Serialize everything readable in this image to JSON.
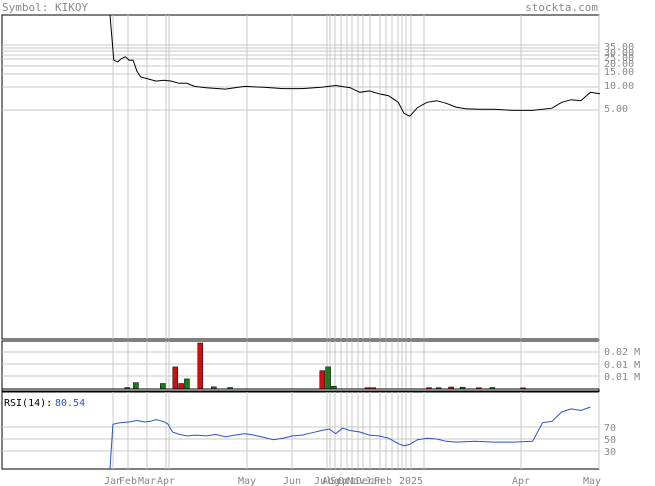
{
  "header": {
    "symbol_text": "Symbol: KIKOY",
    "site": "stockta.com"
  },
  "colors": {
    "price_line": "#000000",
    "grid": "#c8c8c8",
    "vol_up": "#1a7a1a",
    "vol_down": "#d01010",
    "rsi_line": "#2b52c9",
    "label_gray": "#888888"
  },
  "chart_data": [
    {
      "type": "line",
      "name": "price",
      "scale": "log",
      "ylim": [
        1.9,
        46
      ],
      "y_ticks": [
        "35.00",
        "30.00",
        "25.00",
        "20.00",
        "15.00",
        "10.00",
        "5.00"
      ],
      "x_tick_labels": [
        "Jan",
        "Feb",
        "Mar",
        "Apr",
        "May",
        "Jun",
        "Jul",
        "Aug",
        "Sep",
        "Oct",
        "Nov",
        "Dec",
        "Jan",
        "Feb",
        "2025",
        "Apr",
        "May"
      ],
      "points": [
        [
          0.0,
          50
        ],
        [
          0.04,
          29.5
        ],
        [
          0.08,
          29.0
        ],
        [
          0.12,
          30.0
        ],
        [
          0.16,
          30.5
        ],
        [
          0.2,
          29.5
        ],
        [
          0.24,
          29.5
        ],
        [
          0.28,
          26.5
        ],
        [
          0.32,
          25.0
        ],
        [
          0.4,
          24.5
        ],
        [
          0.48,
          24.0
        ],
        [
          0.56,
          24.2
        ],
        [
          0.64,
          24.0
        ],
        [
          0.72,
          23.5
        ],
        [
          0.8,
          23.5
        ],
        [
          0.88,
          22.8
        ],
        [
          1.0,
          22.5
        ],
        [
          1.2,
          22.2
        ],
        [
          1.4,
          22.8
        ],
        [
          1.6,
          22.6
        ],
        [
          1.8,
          22.3
        ],
        [
          2.0,
          22.3
        ],
        [
          2.2,
          22.6
        ],
        [
          2.35,
          23.0
        ],
        [
          2.5,
          22.5
        ],
        [
          2.6,
          21.5
        ],
        [
          2.7,
          21.8
        ],
        [
          2.8,
          21.2
        ],
        [
          2.9,
          20.8
        ],
        [
          3.0,
          19.5
        ],
        [
          3.06,
          17.5
        ],
        [
          3.12,
          17.0
        ],
        [
          3.2,
          18.5
        ],
        [
          3.3,
          19.5
        ],
        [
          3.4,
          19.8
        ],
        [
          3.5,
          19.3
        ],
        [
          3.6,
          18.6
        ],
        [
          3.7,
          18.3
        ],
        [
          3.85,
          18.2
        ],
        [
          4.0,
          18.2
        ],
        [
          4.2,
          18.0
        ],
        [
          4.4,
          18.0
        ],
        [
          4.6,
          18.4
        ],
        [
          4.7,
          19.5
        ],
        [
          4.8,
          20.0
        ],
        [
          4.9,
          19.8
        ],
        [
          5.0,
          21.5
        ],
        [
          5.1,
          21.2
        ]
      ]
    },
    {
      "type": "bar",
      "name": "volume",
      "y_ticks": [
        "0.02 M",
        "0.01 M",
        "0.01 M"
      ],
      "ylim": [
        0,
        0.025
      ],
      "bars": [
        {
          "x": 0.18,
          "v": 0.0008,
          "dir": "up"
        },
        {
          "x": 0.27,
          "v": 0.0035,
          "dir": "up"
        },
        {
          "x": 0.55,
          "v": 0.003,
          "dir": "up"
        },
        {
          "x": 0.68,
          "v": 0.012,
          "dir": "down"
        },
        {
          "x": 0.74,
          "v": 0.003,
          "dir": "down"
        },
        {
          "x": 0.8,
          "v": 0.0055,
          "dir": "up"
        },
        {
          "x": 0.94,
          "v": 0.025,
          "dir": "down"
        },
        {
          "x": 1.08,
          "v": 0.0012,
          "dir": "up"
        },
        {
          "x": 1.25,
          "v": 0.0008,
          "dir": "up"
        },
        {
          "x": 2.21,
          "v": 0.01,
          "dir": "down"
        },
        {
          "x": 2.27,
          "v": 0.012,
          "dir": "up"
        },
        {
          "x": 2.33,
          "v": 0.0015,
          "dir": "up"
        },
        {
          "x": 2.68,
          "v": 0.0007,
          "dir": "down"
        },
        {
          "x": 2.74,
          "v": 0.0007,
          "dir": "down"
        },
        {
          "x": 3.32,
          "v": 0.0007,
          "dir": "down"
        },
        {
          "x": 3.42,
          "v": 0.0007,
          "dir": "up"
        },
        {
          "x": 3.55,
          "v": 0.0011,
          "dir": "down"
        },
        {
          "x": 3.67,
          "v": 0.001,
          "dir": "up"
        },
        {
          "x": 3.84,
          "v": 0.0007,
          "dir": "down"
        },
        {
          "x": 3.98,
          "v": 0.0008,
          "dir": "up"
        },
        {
          "x": 4.3,
          "v": 0.0006,
          "dir": "down"
        }
      ]
    },
    {
      "type": "line",
      "name": "rsi",
      "label": "RSI(14):",
      "value_text": "80.54",
      "y_ticks": [
        "70",
        "50",
        "30"
      ],
      "ylim": [
        0,
        100
      ],
      "points": [
        [
          0.0,
          0
        ],
        [
          0.03,
          58
        ],
        [
          0.1,
          60
        ],
        [
          0.2,
          61
        ],
        [
          0.28,
          63
        ],
        [
          0.36,
          61
        ],
        [
          0.42,
          62
        ],
        [
          0.48,
          64
        ],
        [
          0.55,
          62
        ],
        [
          0.6,
          59
        ],
        [
          0.65,
          48
        ],
        [
          0.72,
          45
        ],
        [
          0.8,
          43
        ],
        [
          0.9,
          44
        ],
        [
          1.0,
          43
        ],
        [
          1.1,
          45
        ],
        [
          1.2,
          42
        ],
        [
          1.3,
          44
        ],
        [
          1.4,
          46
        ],
        [
          1.5,
          44
        ],
        [
          1.6,
          41
        ],
        [
          1.7,
          38
        ],
        [
          1.8,
          40
        ],
        [
          1.9,
          43
        ],
        [
          2.0,
          44
        ],
        [
          2.1,
          47
        ],
        [
          2.2,
          50
        ],
        [
          2.28,
          52
        ],
        [
          2.35,
          46
        ],
        [
          2.42,
          53
        ],
        [
          2.5,
          50
        ],
        [
          2.6,
          48
        ],
        [
          2.7,
          44
        ],
        [
          2.8,
          43
        ],
        [
          2.9,
          40
        ],
        [
          3.0,
          33
        ],
        [
          3.06,
          30
        ],
        [
          3.12,
          32
        ],
        [
          3.2,
          38
        ],
        [
          3.3,
          40
        ],
        [
          3.4,
          39
        ],
        [
          3.5,
          36
        ],
        [
          3.6,
          35
        ],
        [
          3.8,
          36
        ],
        [
          4.0,
          35
        ],
        [
          4.2,
          35
        ],
        [
          4.4,
          36
        ],
        [
          4.5,
          60
        ],
        [
          4.6,
          62
        ],
        [
          4.7,
          74
        ],
        [
          4.8,
          78
        ],
        [
          4.9,
          76
        ],
        [
          5.0,
          80.54
        ]
      ]
    }
  ]
}
